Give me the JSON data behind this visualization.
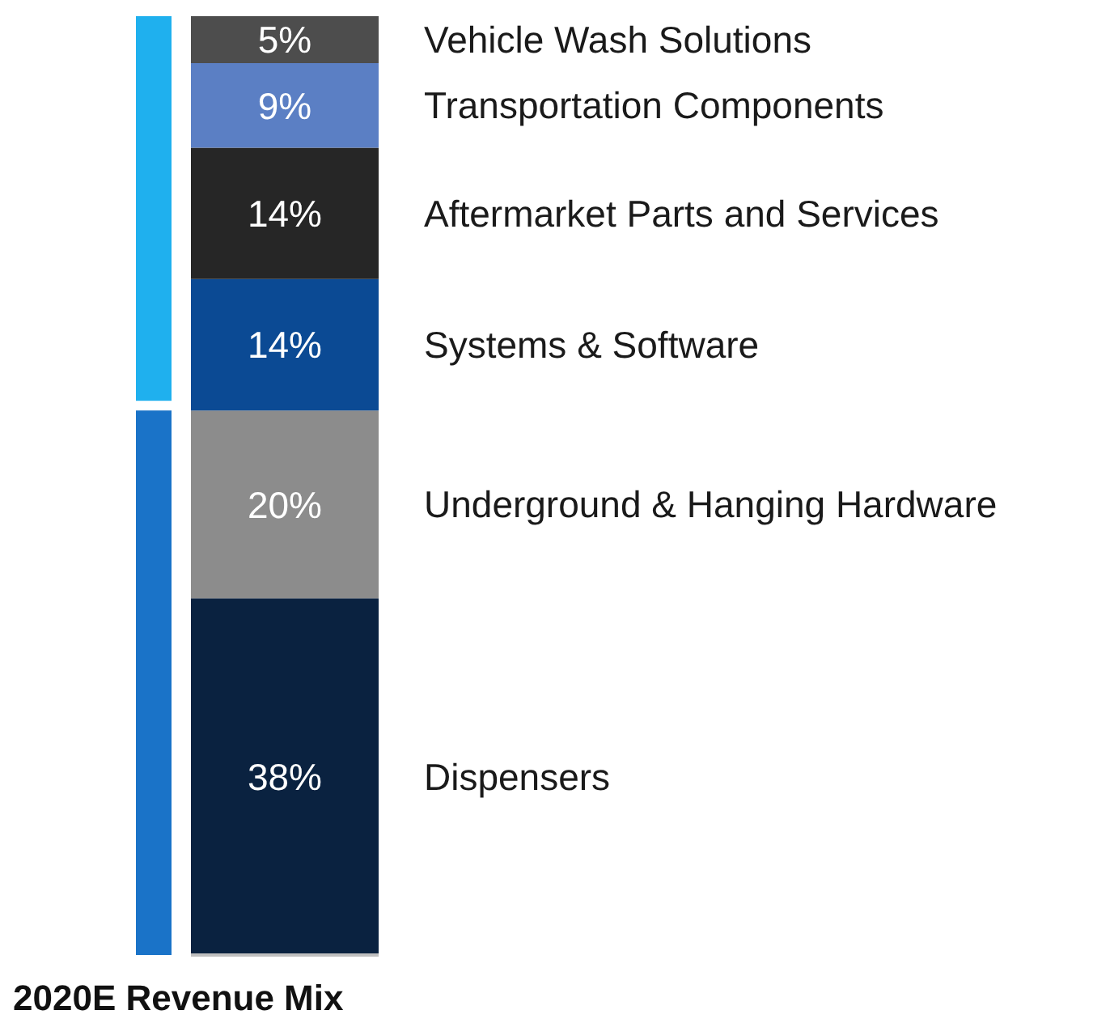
{
  "chart_data": {
    "type": "bar",
    "stacked": true,
    "title": "2020E Revenue Mix",
    "categories": [
      null
    ],
    "legend": false,
    "grid": false,
    "series": [
      {
        "name": "Dispensers",
        "color": "#0a2240",
        "values": [
          38
        ],
        "value_labels": [
          "38%"
        ]
      },
      {
        "name": "Underground & Hanging Hardware",
        "color": "#8c8c8c",
        "values": [
          20
        ],
        "value_labels": [
          "20%"
        ]
      },
      {
        "name": "Systems & Software",
        "color": "#0b4a94",
        "values": [
          14
        ],
        "value_labels": [
          "14%"
        ]
      },
      {
        "name": "Aftermarket Parts and Services",
        "color": "#262626",
        "values": [
          14
        ],
        "value_labels": [
          "14%"
        ]
      },
      {
        "name": "Transportation Components",
        "color": "#5b7fc4",
        "values": [
          9
        ],
        "value_labels": [
          "9%"
        ]
      },
      {
        "name": "Vehicle Wash Solutions",
        "color": "#4d4d4d",
        "values": [
          5
        ],
        "value_labels": [
          "5%"
        ]
      }
    ]
  }
}
